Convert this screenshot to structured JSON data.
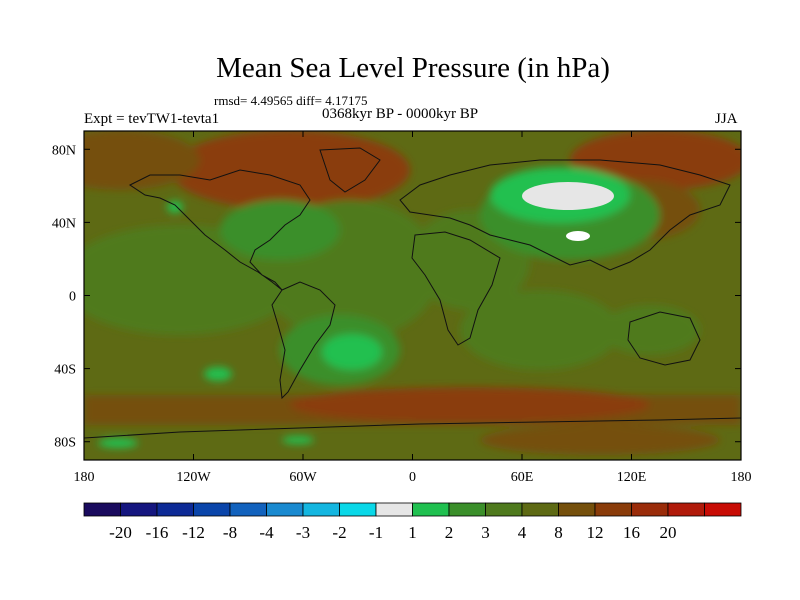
{
  "chart_data": {
    "type": "heatmap",
    "title": "Mean Sea Level Pressure (in hPa)",
    "stats_label": "rmsd= 4.49565 diff= 4.17175",
    "experiment_label": "Expt = tevTW1-tevta1",
    "period_label": "0368kyr BP - 0000kyr BP",
    "season_label": "JJA",
    "x_axis": {
      "range": [
        -180,
        180
      ],
      "ticks": [
        {
          "value": -180,
          "label": "180"
        },
        {
          "value": -120,
          "label": "120W"
        },
        {
          "value": -60,
          "label": "60W"
        },
        {
          "value": 0,
          "label": "0"
        },
        {
          "value": 60,
          "label": "60E"
        },
        {
          "value": 120,
          "label": "120E"
        },
        {
          "value": 180,
          "label": "180"
        }
      ]
    },
    "y_axis": {
      "range": [
        -90,
        90
      ],
      "ticks": [
        {
          "value": 80,
          "label": "80N"
        },
        {
          "value": 40,
          "label": "40N"
        },
        {
          "value": 0,
          "label": "0"
        },
        {
          "value": -40,
          "label": "40S"
        },
        {
          "value": -80,
          "label": "80S"
        }
      ]
    },
    "colorbar": {
      "colors": [
        "#1a0b5e",
        "#15167f",
        "#0d2a96",
        "#0a45aa",
        "#1262bd",
        "#1a8ad0",
        "#14b6e0",
        "#0ad8e8",
        "#e6e6e6",
        "#20c050",
        "#3b8f2a",
        "#4f7a1e",
        "#5e6a14",
        "#75500c",
        "#8a3c0a",
        "#9a2c0a",
        "#b01a0a",
        "#c80c05"
      ],
      "labels": [
        "-20",
        "-16",
        "-12",
        "-8",
        "-4",
        "-3",
        "-2",
        "-1",
        "1",
        "2",
        "3",
        "4",
        "8",
        "12",
        "16",
        "20"
      ]
    },
    "regions": [
      {
        "level": 4,
        "description": "background (3 to 4 hPa)"
      },
      {
        "level": 2,
        "description": "tropical / subtropical band (2 to 3 hPa)"
      },
      {
        "level": 8,
        "description": "southern ocean and arctic (4 to 8 hPa)"
      },
      {
        "level": 12,
        "description": "north pacific / arctic (8 to 12 hPa)"
      },
      {
        "level": 1,
        "description": "central asia (1 to 2 hPa)"
      },
      {
        "level": -1,
        "description": "central asia minimum (-1 to 1 hPa)"
      }
    ]
  }
}
